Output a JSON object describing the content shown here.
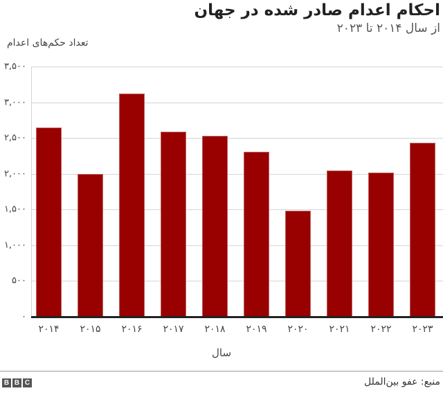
{
  "header": {
    "title": "احکام اعدام صادر شده در جهان",
    "subtitle": "از سال ۲۰۱۴ تا ۲۰۲۳"
  },
  "axes": {
    "ylabel": "تعداد حکم‌های اعدام",
    "xlabel": "سال",
    "yticks": [
      "۰",
      "۵۰۰",
      "۱,۰۰۰",
      "۱,۵۰۰",
      "۲,۰۰۰",
      "۲,۵۰۰",
      "۳,۰۰۰",
      "۳,۵۰۰"
    ],
    "xticks": [
      "۲۰۱۴",
      "۲۰۱۵",
      "۲۰۱۶",
      "۲۰۱۷",
      "۲۰۱۸",
      "۲۰۱۹",
      "۲۰۲۰",
      "۲۰۲۱",
      "۲۰۲۲",
      "۲۰۲۳"
    ]
  },
  "footer": {
    "source": "منبع: عفو بین‌الملل",
    "logo": [
      "B",
      "B",
      "C"
    ]
  },
  "colors": {
    "bar": "#990000",
    "grid": "#d4d4d4",
    "baseline": "#222222"
  },
  "chart_data": {
    "type": "bar",
    "title": "احکام اعدام صادر شده در جهان",
    "subtitle": "از سال ۲۰۱۴ تا ۲۰۲۳",
    "xlabel": "سال",
    "ylabel": "تعداد حکم‌های اعدام",
    "categories": [
      "2014",
      "2015",
      "2016",
      "2017",
      "2018",
      "2019",
      "2020",
      "2021",
      "2022",
      "2023"
    ],
    "values": [
      2650,
      2000,
      3120,
      2590,
      2530,
      2310,
      1480,
      2050,
      2020,
      2430
    ],
    "ylim": [
      0,
      3500
    ],
    "yticks": [
      0,
      500,
      1000,
      1500,
      2000,
      2500,
      3000,
      3500
    ],
    "grid": true,
    "legend": null,
    "source": "منبع: عفو بین‌الملل"
  }
}
